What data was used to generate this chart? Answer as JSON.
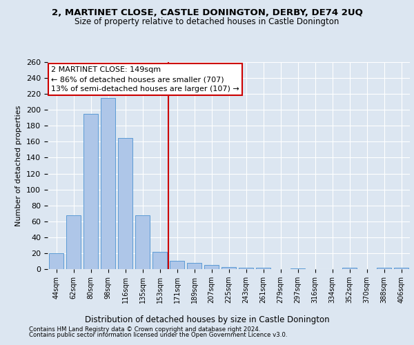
{
  "title1": "2, MARTINET CLOSE, CASTLE DONINGTON, DERBY, DE74 2UQ",
  "title2": "Size of property relative to detached houses in Castle Donington",
  "xlabel": "Distribution of detached houses by size in Castle Donington",
  "ylabel": "Number of detached properties",
  "categories": [
    "44sqm",
    "62sqm",
    "80sqm",
    "98sqm",
    "116sqm",
    "135sqm",
    "153sqm",
    "171sqm",
    "189sqm",
    "207sqm",
    "225sqm",
    "243sqm",
    "261sqm",
    "279sqm",
    "297sqm",
    "316sqm",
    "334sqm",
    "352sqm",
    "370sqm",
    "388sqm",
    "406sqm"
  ],
  "values": [
    20,
    68,
    195,
    215,
    165,
    68,
    22,
    10,
    8,
    5,
    3,
    2,
    2,
    0,
    1,
    0,
    0,
    2,
    0,
    2,
    2
  ],
  "bar_color": "#aec6e8",
  "bar_edgecolor": "#5b9bd5",
  "vline_color": "#cc0000",
  "annotation_text": "2 MARTINET CLOSE: 149sqm\n← 86% of detached houses are smaller (707)\n13% of semi-detached houses are larger (107) →",
  "annotation_box_color": "#ffffff",
  "annotation_box_edgecolor": "#cc0000",
  "background_color": "#dce6f1",
  "plot_bg_color": "#dce6f1",
  "footer1": "Contains HM Land Registry data © Crown copyright and database right 2024.",
  "footer2": "Contains public sector information licensed under the Open Government Licence v3.0.",
  "ylim": [
    0,
    260
  ],
  "yticks": [
    0,
    20,
    40,
    60,
    80,
    100,
    120,
    140,
    160,
    180,
    200,
    220,
    240,
    260
  ],
  "vline_index": 6.5
}
